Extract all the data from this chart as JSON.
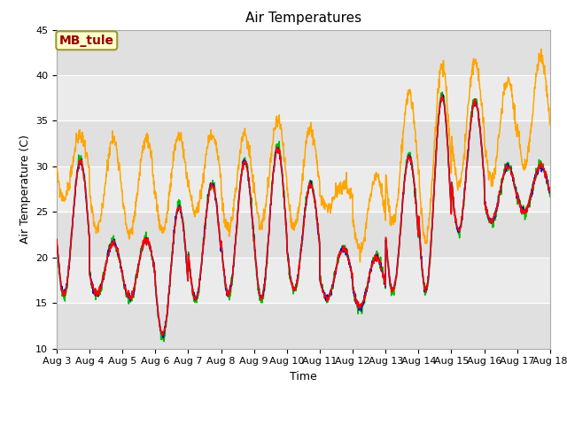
{
  "title": "Air Temperatures",
  "xlabel": "Time",
  "ylabel": "Air Temperature (C)",
  "ylim": [
    10,
    45
  ],
  "background_color": "#ffffff",
  "plot_bg_color": "#ebebeb",
  "series_colors": {
    "AirT": "#ff0000",
    "li75_t": "#0000cc",
    "li77_temp": "#00bb00",
    "Tsonic": "#ffa500"
  },
  "annotation_text": "MB_tule",
  "annotation_bg": "#ffffcc",
  "annotation_fg": "#990000",
  "annotation_border": "#999933",
  "x_tick_labels": [
    "Aug 3",
    "Aug 4",
    "Aug 5",
    "Aug 6",
    "Aug 7",
    "Aug 8",
    "Aug 9",
    "Aug 10",
    "Aug 11",
    "Aug 12",
    "Aug 13",
    "Aug 14",
    "Aug 15",
    "Aug 16",
    "Aug 17",
    "Aug 18"
  ],
  "y_tick_labels": [
    "10",
    "15",
    "20",
    "25",
    "30",
    "35",
    "40",
    "45"
  ],
  "y_ticks": [
    10,
    15,
    20,
    25,
    30,
    35,
    40,
    45
  ],
  "band_edges": [
    10,
    15,
    20,
    25,
    30,
    35,
    40,
    45
  ],
  "band_colors_even": "#e0e0e0",
  "band_colors_odd": "#ebebeb",
  "n_days": 15,
  "pts_per_day": 96,
  "day_mins_air": [
    16,
    16,
    15.5,
    11.5,
    15.5,
    16,
    15.5,
    16.5,
    15.5,
    14.5,
    16.5,
    16.5,
    23,
    24,
    25
  ],
  "day_maxs_air": [
    30.5,
    21.5,
    22,
    25.5,
    28,
    30.5,
    32,
    28,
    21,
    20,
    31,
    37.5,
    37,
    30,
    30
  ],
  "tsonic_max_add": [
    3,
    11.5,
    11,
    8,
    5.5,
    3,
    3,
    6,
    7,
    9,
    7,
    3.5,
    4.5,
    9.5,
    12
  ],
  "tsonic_min_add": [
    10.5,
    7,
    7,
    11.5,
    9.5,
    7,
    8,
    7,
    10,
    6.5,
    7,
    5.5,
    5,
    4.5,
    5
  ],
  "phase_trough": 0.22,
  "title_fontsize": 11,
  "tick_fontsize": 8,
  "label_fontsize": 9,
  "legend_fontsize": 9
}
